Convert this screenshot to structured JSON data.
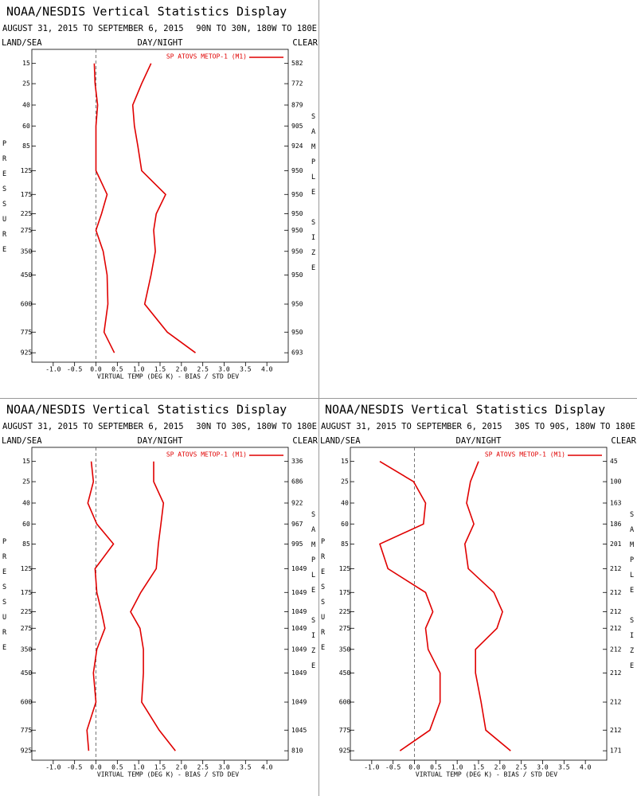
{
  "chart_data": [
    {
      "type": "line",
      "title": "NOAA/NESDIS Vertical Statistics Display",
      "date_range": "AUGUST 31, 2015 TO SEPTEMBER 6, 2015",
      "region": "90N TO 30N, 180W TO 180E",
      "land_sea_label": "LAND/SEA",
      "day_night_label": "DAY/NIGHT",
      "clear_label": "CLEAR",
      "ylabel": "PRESSURE",
      "y2label": "SAMPLE SIZE",
      "xlabel": "VIRTUAL TEMP (DEG K) - BIAS / STD DEV",
      "levels": [
        15,
        25,
        40,
        60,
        85,
        125,
        175,
        225,
        275,
        350,
        450,
        600,
        775,
        925
      ],
      "yticks": [
        15,
        25,
        40,
        60,
        85,
        125,
        175,
        225,
        275,
        350,
        450,
        600,
        775,
        925
      ],
      "ylim": [
        10,
        1000
      ],
      "yscale": "power",
      "yexponent": 0.286,
      "xlim": [
        -1.5,
        4.5
      ],
      "xticks": [
        {
          "value": -1,
          "label": "-1.0"
        },
        -0.5,
        {
          "value": 0,
          "label": "0.0"
        },
        0.5,
        {
          "value": 1,
          "label": "1.0"
        },
        1.5,
        {
          "value": 2,
          "label": "2.0"
        },
        2.5,
        {
          "value": 3,
          "label": "3.0"
        },
        3.5,
        {
          "value": 4,
          "label": "4.0"
        }
      ],
      "legend": "upper right",
      "sample_size": [
        582,
        772,
        879,
        905,
        924,
        950,
        950,
        950,
        950,
        950,
        950,
        950,
        950,
        693
      ],
      "series": [
        {
          "name": "SP ATOVS METOP-1 (M1)",
          "color": "#e00000",
          "values": [
            -0.04,
            -0.02,
            0.04,
            0,
            0,
            0,
            0.26,
            0.13,
            0,
            0.17,
            0.26,
            0.28,
            0.19,
            0.43
          ],
          "std_dev": [
            1.29,
            1.07,
            0.86,
            0.9,
            0.98,
            1.07,
            1.63,
            1.41,
            1.35,
            1.39,
            1.29,
            1.14,
            1.67,
            2.33
          ]
        }
      ]
    },
    {
      "type": "line",
      "title": "NOAA/NESDIS Vertical Statistics Display",
      "date_range": "AUGUST 31, 2015 TO SEPTEMBER 6, 2015",
      "region": "30N TO 30S, 180W TO 180E",
      "land_sea_label": "LAND/SEA",
      "day_night_label": "DAY/NIGHT",
      "clear_label": "CLEAR",
      "ylabel": "PRESSURE",
      "y2label": "SAMPLE SIZE",
      "xlabel": "VIRTUAL TEMP (DEG K) - BIAS / STD DEV",
      "levels": [
        15,
        25,
        40,
        60,
        85,
        125,
        175,
        225,
        275,
        350,
        450,
        600,
        775,
        925
      ],
      "yticks": [
        15,
        25,
        40,
        60,
        85,
        125,
        175,
        225,
        275,
        350,
        450,
        600,
        775,
        925
      ],
      "ylim": [
        10,
        1000
      ],
      "yscale": "power",
      "yexponent": 0.286,
      "xlim": [
        -1.5,
        4.5
      ],
      "xticks": [
        {
          "value": -1,
          "label": "-1.0"
        },
        -0.5,
        {
          "value": 0,
          "label": "0.0"
        },
        0.5,
        {
          "value": 1,
          "label": "1.0"
        },
        1.5,
        {
          "value": 2,
          "label": "2.0"
        },
        2.5,
        {
          "value": 3,
          "label": "3.0"
        },
        3.5,
        {
          "value": 4,
          "label": "4.0"
        }
      ],
      "legend": "upper right",
      "sample_size": [
        336,
        686,
        922,
        967,
        995,
        1049,
        1049,
        1049,
        1049,
        1049,
        1049,
        1049,
        1045,
        810
      ],
      "series": [
        {
          "name": "SP ATOVS METOP-1 (M1)",
          "color": "#e00000",
          "values": [
            -0.11,
            -0.06,
            -0.19,
            0.02,
            0.41,
            -0.02,
            0.02,
            0.13,
            0.21,
            0.02,
            -0.06,
            0,
            -0.21,
            -0.17
          ],
          "std_dev": [
            1.35,
            1.35,
            1.58,
            1.52,
            1.46,
            1.41,
            1.05,
            0.81,
            1.03,
            1.11,
            1.11,
            1.07,
            1.48,
            1.86
          ]
        }
      ]
    },
    {
      "type": "line",
      "title": "NOAA/NESDIS Vertical Statistics Display",
      "date_range": "AUGUST 31, 2015 TO SEPTEMBER 6, 2015",
      "region": "30S TO 90S, 180W TO 180E",
      "land_sea_label": "LAND/SEA",
      "day_night_label": "DAY/NIGHT",
      "clear_label": "CLEAR",
      "ylabel": "PRESSURE",
      "y2label": "SAMPLE SIZE",
      "xlabel": "VIRTUAL TEMP (DEG K) - BIAS / STD DEV",
      "levels": [
        15,
        25,
        40,
        60,
        85,
        125,
        175,
        225,
        275,
        350,
        450,
        600,
        775,
        925
      ],
      "yticks": [
        15,
        25,
        40,
        60,
        85,
        125,
        175,
        225,
        275,
        350,
        450,
        600,
        775,
        925
      ],
      "ylim": [
        10,
        1000
      ],
      "yscale": "power",
      "yexponent": 0.286,
      "xlim": [
        -1.5,
        4.5
      ],
      "xticks": [
        {
          "value": -1,
          "label": "-1.0"
        },
        -0.5,
        {
          "value": 0,
          "label": "0.0"
        },
        0.5,
        {
          "value": 1,
          "label": "1.0"
        },
        1.5,
        {
          "value": 2,
          "label": "2.0"
        },
        2.5,
        {
          "value": 3,
          "label": "3.0"
        },
        3.5,
        {
          "value": 4,
          "label": "4.0"
        }
      ],
      "legend": "upper right",
      "sample_size": [
        45,
        100,
        163,
        186,
        201,
        212,
        212,
        212,
        212,
        212,
        212,
        212,
        212,
        171
      ],
      "series": [
        {
          "name": "SP ATOVS METOP-1 (M1)",
          "color": "#e00000",
          "values": [
            -0.81,
            -0.02,
            0.26,
            0.21,
            -0.81,
            -0.62,
            0.26,
            0.43,
            0.26,
            0.32,
            0.6,
            0.6,
            0.36,
            -0.34
          ],
          "std_dev": [
            1.5,
            1.31,
            1.22,
            1.39,
            1.18,
            1.26,
            1.86,
            2.06,
            1.93,
            1.43,
            1.43,
            1.56,
            1.67,
            2.25
          ]
        }
      ]
    }
  ]
}
